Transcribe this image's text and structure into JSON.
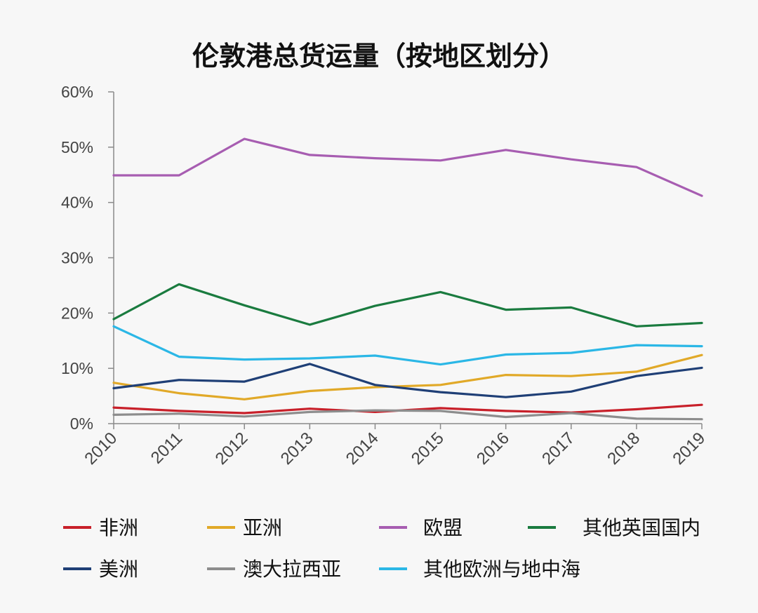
{
  "chart_data": {
    "type": "line",
    "title": "伦敦港总货运量（按地区划分）",
    "x": [
      "2010",
      "2011",
      "2012",
      "2013",
      "2014",
      "2015",
      "2016",
      "2017",
      "2018",
      "2019"
    ],
    "ylim": [
      0,
      60
    ],
    "yticks": [
      0,
      10,
      20,
      30,
      40,
      50,
      60
    ],
    "ytick_labels": [
      "0%",
      "10%",
      "20%",
      "30%",
      "40%",
      "50%",
      "60%"
    ],
    "grid": false,
    "legend_position": "bottom",
    "series": [
      {
        "name": "非洲",
        "color": "#c8202a",
        "values": [
          2.9,
          2.3,
          1.9,
          2.7,
          2.1,
          2.8,
          2.3,
          2.0,
          2.6,
          3.4
        ]
      },
      {
        "name": "亚洲",
        "color": "#e1a928",
        "values": [
          7.4,
          5.5,
          4.4,
          5.9,
          6.6,
          7.0,
          8.8,
          8.6,
          9.4,
          12.4
        ]
      },
      {
        "name": "欧盟",
        "color": "#a75db1",
        "values": [
          44.9,
          44.9,
          51.5,
          48.6,
          48.0,
          47.6,
          49.5,
          47.8,
          46.4,
          41.2
        ]
      },
      {
        "name": "其他英国国内",
        "color": "#1a7b3f",
        "values": [
          18.9,
          25.2,
          21.4,
          17.9,
          21.3,
          23.8,
          20.6,
          21.0,
          17.6,
          18.2
        ]
      },
      {
        "name": "美洲",
        "color": "#1f3f76",
        "values": [
          6.4,
          7.9,
          7.6,
          10.8,
          7.0,
          5.7,
          4.8,
          5.8,
          8.6,
          10.1
        ]
      },
      {
        "name": "澳大拉西亚",
        "color": "#8d8d8d",
        "values": [
          1.6,
          1.8,
          1.3,
          2.1,
          2.4,
          2.3,
          1.2,
          1.9,
          0.9,
          0.8
        ]
      },
      {
        "name": "其他欧洲与地中海",
        "color": "#2bb7e6",
        "values": [
          17.6,
          12.1,
          11.6,
          11.8,
          12.3,
          10.7,
          12.5,
          12.8,
          14.2,
          14.0
        ]
      }
    ]
  }
}
